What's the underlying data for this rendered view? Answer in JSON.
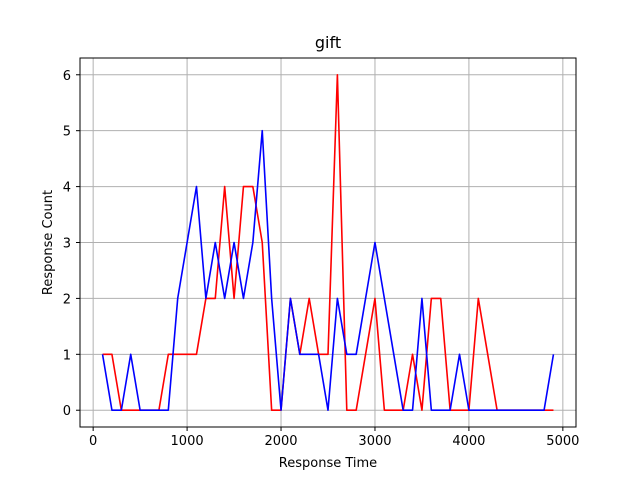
{
  "chart_data": {
    "type": "line",
    "title": "gift",
    "xlabel": "Response Time",
    "ylabel": "Response Count",
    "xlim": [
      -140,
      5140
    ],
    "ylim": [
      -0.3,
      6.3
    ],
    "xticks": [
      0,
      1000,
      2000,
      3000,
      4000,
      5000
    ],
    "yticks": [
      0,
      1,
      2,
      3,
      4,
      5,
      6
    ],
    "grid": true,
    "legend": "none",
    "series": [
      {
        "color": "#ff0000",
        "points": [
          [
            100,
            1
          ],
          [
            200,
            1
          ],
          [
            300,
            0
          ],
          [
            400,
            0
          ],
          [
            500,
            0
          ],
          [
            600,
            0
          ],
          [
            700,
            0
          ],
          [
            800,
            1
          ],
          [
            900,
            1
          ],
          [
            1000,
            1
          ],
          [
            1100,
            1
          ],
          [
            1200,
            2
          ],
          [
            1300,
            2
          ],
          [
            1400,
            4
          ],
          [
            1500,
            2
          ],
          [
            1600,
            4
          ],
          [
            1700,
            4
          ],
          [
            1800,
            3
          ],
          [
            1900,
            0
          ],
          [
            2000,
            0
          ],
          [
            2100,
            2
          ],
          [
            2200,
            1
          ],
          [
            2300,
            2
          ],
          [
            2400,
            1
          ],
          [
            2500,
            1
          ],
          [
            2600,
            6
          ],
          [
            2700,
            0
          ],
          [
            2800,
            0
          ],
          [
            2900,
            1
          ],
          [
            3000,
            2
          ],
          [
            3100,
            0
          ],
          [
            3200,
            0
          ],
          [
            3300,
            0
          ],
          [
            3400,
            1
          ],
          [
            3500,
            0
          ],
          [
            3600,
            2
          ],
          [
            3700,
            2
          ],
          [
            3800,
            0
          ],
          [
            3900,
            0
          ],
          [
            4000,
            0
          ],
          [
            4100,
            2
          ],
          [
            4200,
            1
          ],
          [
            4300,
            0
          ],
          [
            4400,
            0
          ],
          [
            4500,
            0
          ],
          [
            4600,
            0
          ],
          [
            4700,
            0
          ],
          [
            4800,
            0
          ],
          [
            4900,
            0
          ]
        ]
      },
      {
        "color": "#0000ff",
        "points": [
          [
            100,
            1
          ],
          [
            200,
            0
          ],
          [
            300,
            0
          ],
          [
            400,
            1
          ],
          [
            500,
            0
          ],
          [
            600,
            0
          ],
          [
            700,
            0
          ],
          [
            800,
            0
          ],
          [
            900,
            2
          ],
          [
            1000,
            3
          ],
          [
            1100,
            4
          ],
          [
            1200,
            2
          ],
          [
            1300,
            3
          ],
          [
            1400,
            2
          ],
          [
            1500,
            3
          ],
          [
            1600,
            2
          ],
          [
            1700,
            3
          ],
          [
            1800,
            5
          ],
          [
            1900,
            2
          ],
          [
            2000,
            0
          ],
          [
            2100,
            2
          ],
          [
            2200,
            1
          ],
          [
            2300,
            1
          ],
          [
            2400,
            1
          ],
          [
            2500,
            0
          ],
          [
            2600,
            2
          ],
          [
            2700,
            1
          ],
          [
            2800,
            1
          ],
          [
            2900,
            2
          ],
          [
            3000,
            3
          ],
          [
            3100,
            2
          ],
          [
            3200,
            1
          ],
          [
            3300,
            0
          ],
          [
            3400,
            0
          ],
          [
            3500,
            2
          ],
          [
            3600,
            0
          ],
          [
            3700,
            0
          ],
          [
            3800,
            0
          ],
          [
            3900,
            1
          ],
          [
            4000,
            0
          ],
          [
            4100,
            0
          ],
          [
            4200,
            0
          ],
          [
            4300,
            0
          ],
          [
            4400,
            0
          ],
          [
            4500,
            0
          ],
          [
            4600,
            0
          ],
          [
            4700,
            0
          ],
          [
            4800,
            0
          ],
          [
            4900,
            1
          ]
        ]
      }
    ]
  }
}
